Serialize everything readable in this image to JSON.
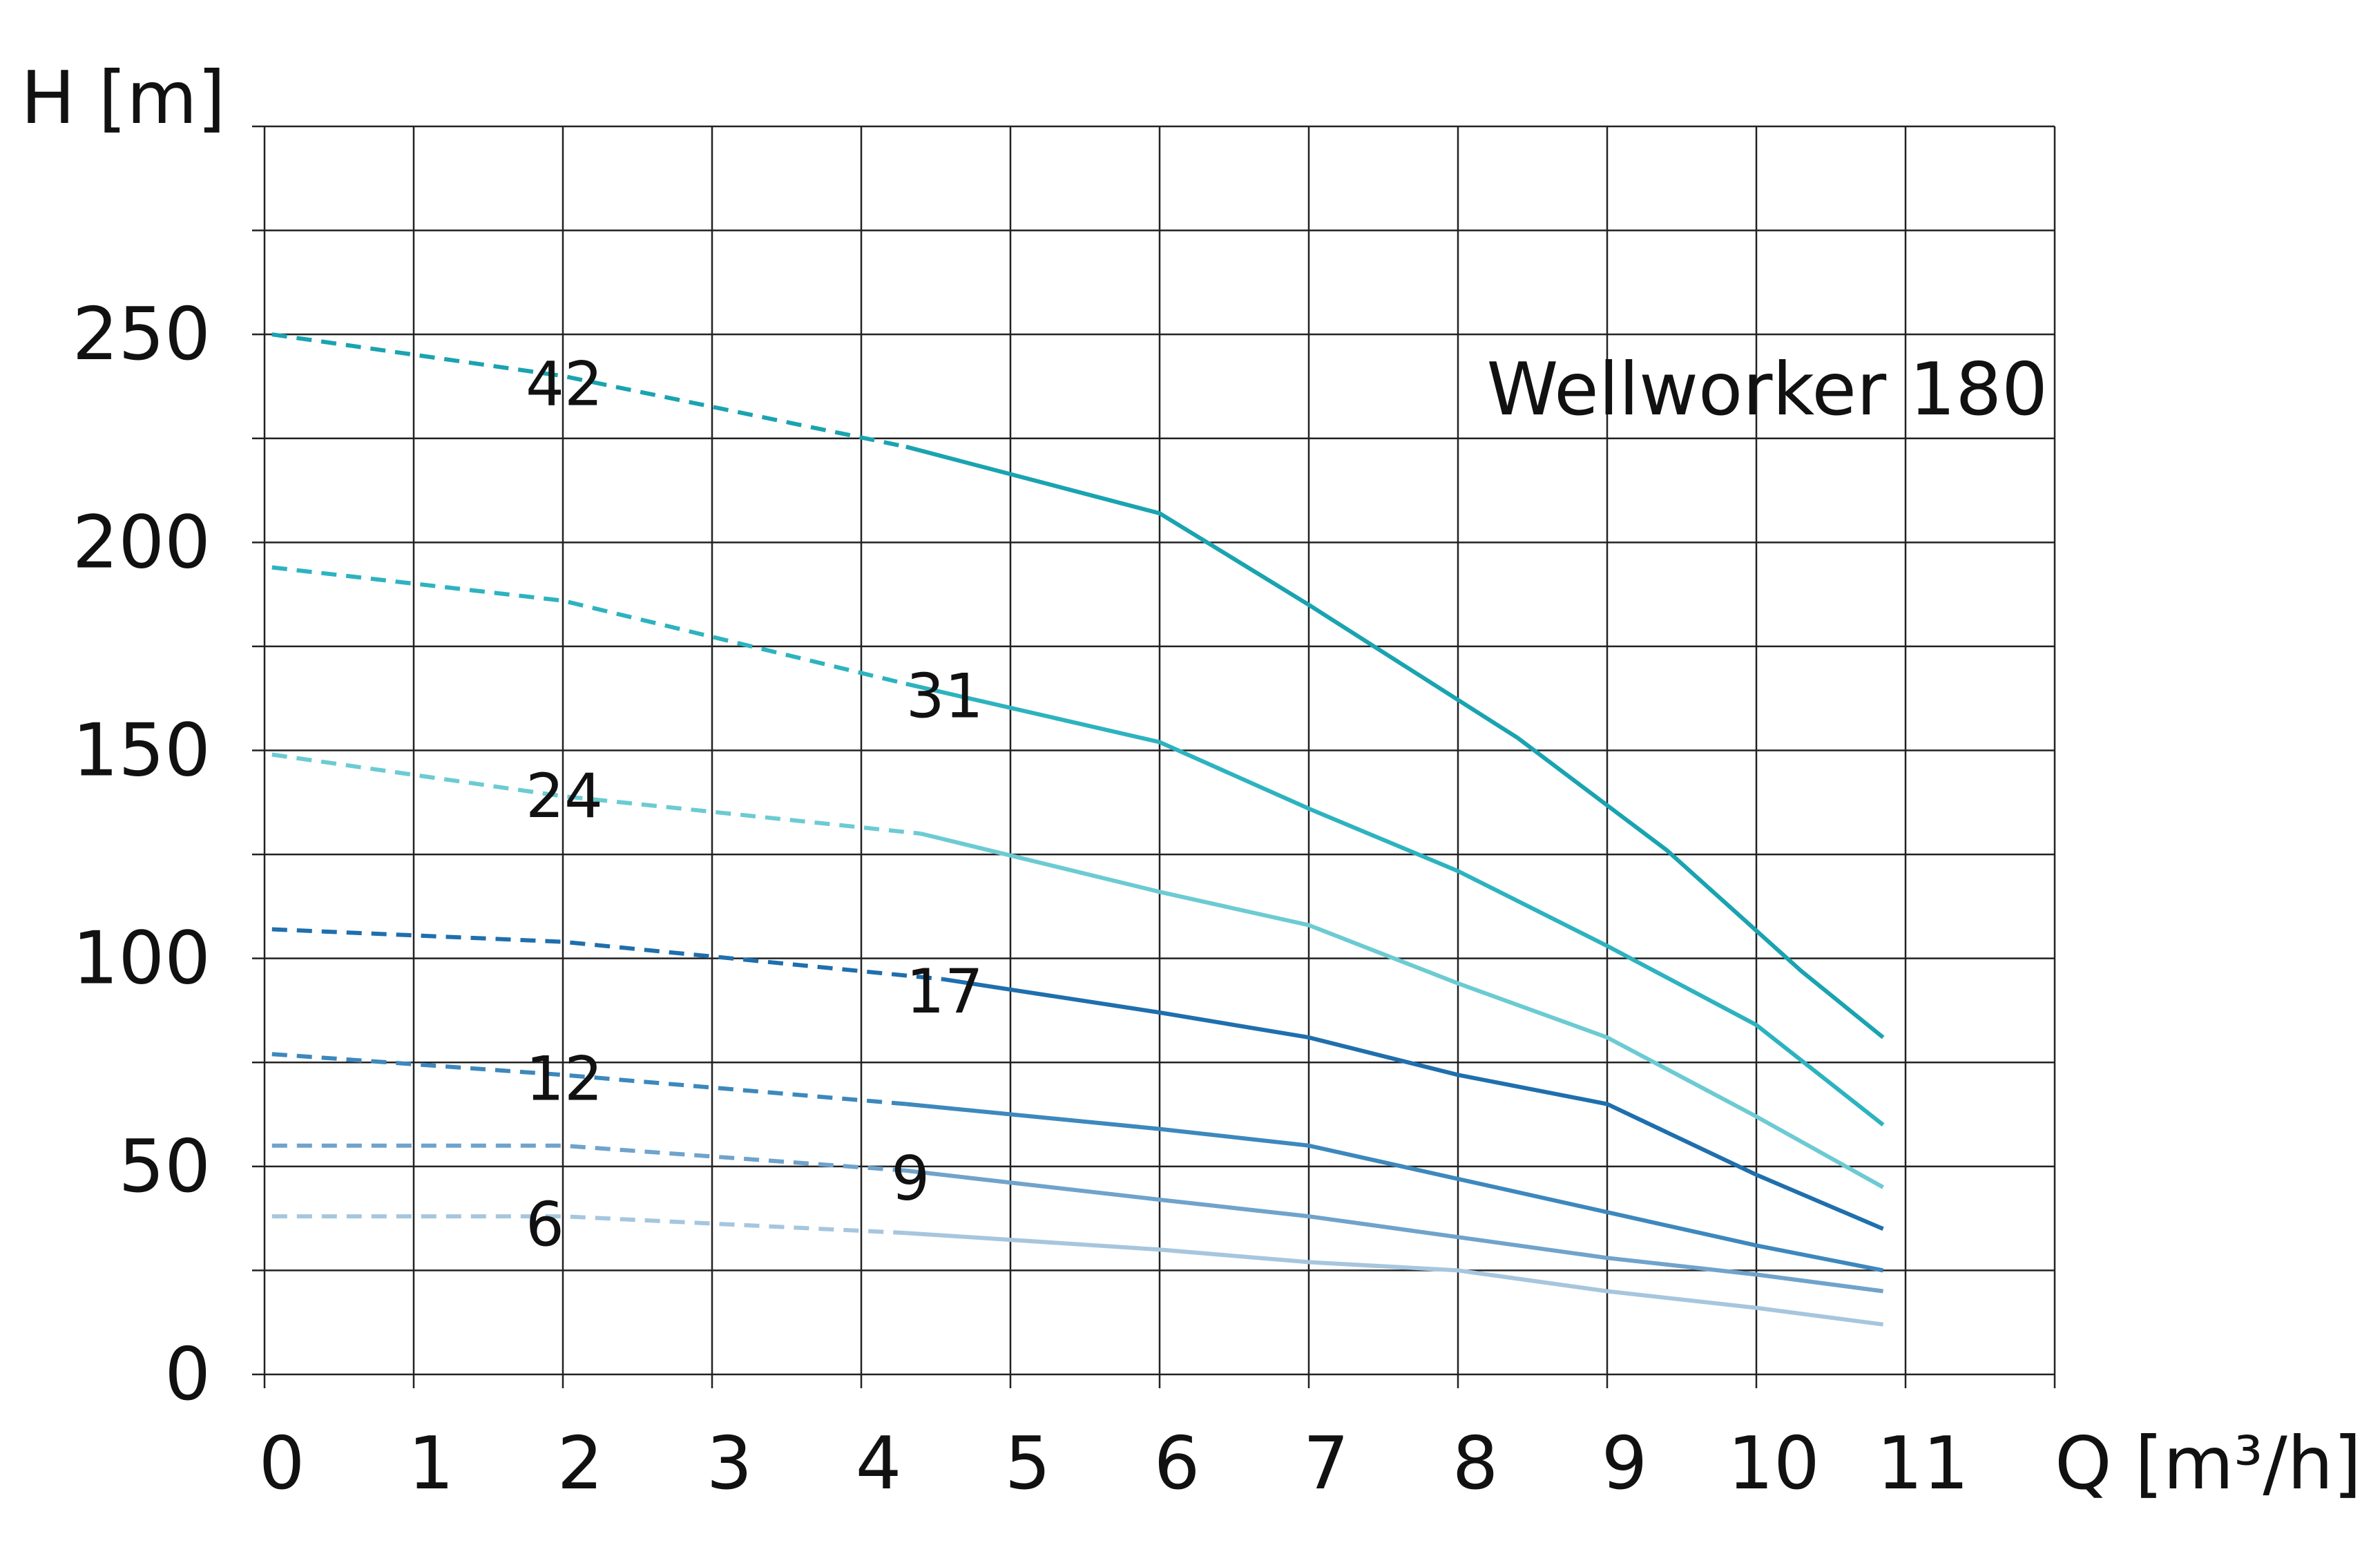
{
  "chart_data": {
    "type": "line",
    "title": "Wellworker 180",
    "xlabel": "Q [m³/h]",
    "ylabel": "H [m]",
    "xlim": [
      0,
      12
    ],
    "ylim": [
      0,
      300
    ],
    "x_ticks": [
      "0",
      "1",
      "2",
      "3",
      "4",
      "5",
      "6",
      "7",
      "8",
      "9",
      "10",
      "11"
    ],
    "y_ticks": [
      "0",
      "50",
      "100",
      "150",
      "200",
      "250"
    ],
    "grid": true,
    "series": [
      {
        "name": "42",
        "color": "#1aa3b0",
        "dashed_until": 4.3,
        "points": [
          [
            0.05,
            250
          ],
          [
            2,
            240
          ],
          [
            4.3,
            223
          ],
          [
            6,
            207
          ],
          [
            7,
            185
          ],
          [
            8.4,
            153
          ],
          [
            9.4,
            126
          ],
          [
            10.3,
            97
          ],
          [
            10.85,
            81
          ]
        ]
      },
      {
        "name": "31",
        "color": "#2db3bf",
        "dashed_until": 4.3,
        "points": [
          [
            0.05,
            194
          ],
          [
            2,
            186
          ],
          [
            4.3,
            166
          ],
          [
            6,
            152
          ],
          [
            7,
            136
          ],
          [
            8,
            121
          ],
          [
            9,
            103
          ],
          [
            10,
            84
          ],
          [
            10.85,
            60
          ]
        ]
      },
      {
        "name": "24",
        "color": "#6ccbd2",
        "dashed_until": 4.4,
        "points": [
          [
            0.05,
            149
          ],
          [
            2,
            139
          ],
          [
            4.4,
            130
          ],
          [
            6,
            116
          ],
          [
            7,
            108
          ],
          [
            8,
            94
          ],
          [
            9,
            81
          ],
          [
            10,
            62
          ],
          [
            10.85,
            45
          ]
        ]
      },
      {
        "name": "17",
        "color": "#1f6fad",
        "dashed_until": 4.55,
        "points": [
          [
            0.05,
            107
          ],
          [
            2,
            104
          ],
          [
            4.55,
            95
          ],
          [
            6,
            87
          ],
          [
            7,
            81
          ],
          [
            8,
            72
          ],
          [
            9,
            65
          ],
          [
            10,
            48
          ],
          [
            10.85,
            35
          ]
        ]
      },
      {
        "name": "12",
        "color": "#3d88bd",
        "dashed_until": 4.3,
        "points": [
          [
            0.05,
            77
          ],
          [
            2,
            72
          ],
          [
            4.3,
            65
          ],
          [
            6,
            59
          ],
          [
            7,
            55
          ],
          [
            8,
            47
          ],
          [
            9,
            39
          ],
          [
            10,
            31
          ],
          [
            10.85,
            25
          ]
        ]
      },
      {
        "name": "9",
        "color": "#6fa3cc",
        "dashed_until": 4.3,
        "points": [
          [
            0.05,
            55
          ],
          [
            2,
            55
          ],
          [
            4.3,
            49
          ],
          [
            6,
            42
          ],
          [
            7,
            38
          ],
          [
            8,
            33
          ],
          [
            9,
            28
          ],
          [
            10,
            24
          ],
          [
            10.85,
            20
          ]
        ]
      },
      {
        "name": "6",
        "color": "#a6c6de",
        "dashed_until": 4.3,
        "points": [
          [
            0.05,
            38
          ],
          [
            2,
            38
          ],
          [
            4.3,
            34
          ],
          [
            6,
            30
          ],
          [
            7,
            27
          ],
          [
            8,
            25
          ],
          [
            9,
            20
          ],
          [
            10,
            16
          ],
          [
            10.85,
            12
          ]
        ]
      }
    ],
    "annotations": [
      {
        "text": "42",
        "x": 1.75,
        "y": 233
      },
      {
        "text": "31",
        "x": 4.3,
        "y": 158
      },
      {
        "text": "24",
        "x": 1.75,
        "y": 134
      },
      {
        "text": "17",
        "x": 4.3,
        "y": 87
      },
      {
        "text": "12",
        "x": 1.75,
        "y": 66
      },
      {
        "text": "9",
        "x": 4.2,
        "y": 42
      },
      {
        "text": "6",
        "x": 1.75,
        "y": 31
      }
    ]
  }
}
